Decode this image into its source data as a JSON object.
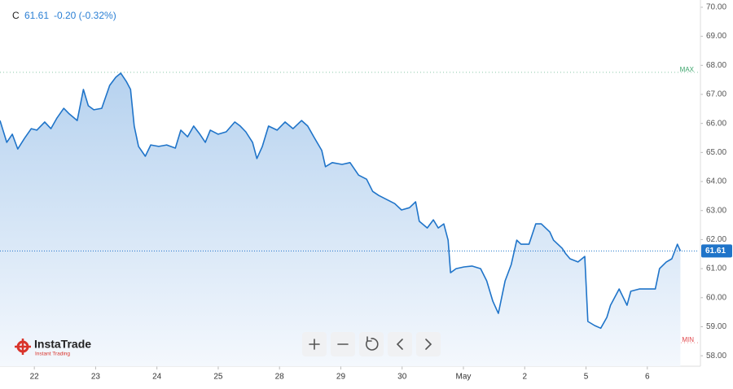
{
  "header": {
    "ticker": "C",
    "price": "61.61",
    "change": "-0.20 (-0.32%)"
  },
  "logo": {
    "name": "InstaTrade",
    "tagline": "Instant Trading"
  },
  "chart_data": {
    "type": "area",
    "color": "#1f74c9",
    "grid": false,
    "x": [
      -0.56,
      -0.45,
      -0.36,
      -0.27,
      -0.16,
      -0.05,
      0.04,
      0.17,
      0.27,
      0.37,
      0.48,
      0.57,
      0.7,
      0.8,
      0.88,
      0.97,
      1.1,
      1.23,
      1.33,
      1.41,
      1.5,
      1.57,
      1.63,
      1.7,
      1.81,
      1.9,
      2.03,
      2.16,
      2.3,
      2.39,
      2.5,
      2.6,
      2.7,
      2.79,
      2.87,
      3.0,
      3.13,
      3.27,
      3.36,
      3.45,
      3.56,
      3.63,
      3.72,
      3.82,
      3.96,
      4.09,
      4.22,
      4.36,
      4.46,
      4.56,
      4.69,
      4.75,
      4.86,
      5.02,
      5.15,
      5.29,
      5.42,
      5.52,
      5.62,
      5.75,
      5.88,
      5.99,
      6.12,
      6.22,
      6.28,
      6.41,
      6.51,
      6.59,
      6.68,
      6.75,
      6.79,
      6.88,
      7.01,
      7.14,
      7.28,
      7.38,
      7.48,
      7.57,
      7.68,
      7.78,
      7.87,
      7.94,
      8.07,
      8.18,
      8.27,
      8.41,
      8.47,
      8.61,
      8.67,
      8.74,
      8.87,
      8.98,
      9.03,
      9.14,
      9.24,
      9.34,
      9.4,
      9.54,
      9.67,
      9.73,
      9.87,
      10.0,
      10.13,
      10.2,
      10.31,
      10.4,
      10.49,
      10.54
    ],
    "values": [
      66.1,
      65.35,
      65.63,
      65.12,
      65.49,
      65.82,
      65.77,
      66.05,
      65.82,
      66.19,
      66.52,
      66.33,
      66.1,
      67.17,
      66.61,
      66.47,
      66.52,
      67.31,
      67.59,
      67.73,
      67.45,
      67.17,
      65.91,
      65.21,
      64.87,
      65.26,
      65.21,
      65.26,
      65.15,
      65.77,
      65.54,
      65.91,
      65.63,
      65.35,
      65.77,
      65.63,
      65.71,
      66.05,
      65.91,
      65.71,
      65.35,
      64.79,
      65.21,
      65.91,
      65.77,
      66.05,
      65.82,
      66.1,
      65.91,
      65.54,
      65.07,
      64.51,
      64.65,
      64.59,
      64.65,
      64.22,
      64.08,
      63.66,
      63.52,
      63.38,
      63.24,
      63.02,
      63.1,
      63.3,
      62.63,
      62.4,
      62.68,
      62.4,
      62.54,
      61.98,
      60.86,
      61.0,
      61.06,
      61.09,
      61.0,
      60.58,
      59.88,
      59.46,
      60.58,
      61.14,
      61.98,
      61.84,
      61.84,
      62.54,
      62.54,
      62.26,
      61.98,
      61.7,
      61.51,
      61.34,
      61.23,
      61.42,
      59.18,
      59.04,
      58.95,
      59.32,
      59.74,
      60.3,
      59.74,
      60.22,
      60.3,
      60.3,
      60.3,
      61.0,
      61.23,
      61.34,
      61.84,
      61.61
    ],
    "xlim": [
      -0.56,
      10.84
    ],
    "xticks": [
      {
        "value": 0,
        "label": "22"
      },
      {
        "value": 1,
        "label": "23"
      },
      {
        "value": 2,
        "label": "24"
      },
      {
        "value": 3,
        "label": "25"
      },
      {
        "value": 4,
        "label": "28"
      },
      {
        "value": 5,
        "label": "29"
      },
      {
        "value": 6,
        "label": "30"
      },
      {
        "value": 7,
        "label": "May"
      },
      {
        "value": 8,
        "label": "2"
      },
      {
        "value": 9,
        "label": "5"
      },
      {
        "value": 10,
        "label": "6"
      }
    ],
    "ylim": [
      57.64,
      70.25
    ],
    "yticks": [
      {
        "value": 58,
        "label": "58.00"
      },
      {
        "value": 59,
        "label": "59.00"
      },
      {
        "value": 60,
        "label": "60.00"
      },
      {
        "value": 61,
        "label": "61.00"
      },
      {
        "value": 62,
        "label": "62.00"
      },
      {
        "value": 63,
        "label": "63.00"
      },
      {
        "value": 64,
        "label": "64.00"
      },
      {
        "value": 65,
        "label": "65.00"
      },
      {
        "value": 66,
        "label": "66.00"
      },
      {
        "value": 67,
        "label": "67.00"
      },
      {
        "value": 68,
        "label": "68.00"
      },
      {
        "value": 69,
        "label": "69.00"
      },
      {
        "value": 70,
        "label": "70.00"
      }
    ],
    "last": 61.61,
    "max": {
      "value": 67.76,
      "label": "MAX",
      "color": "#3aa46a"
    },
    "min": {
      "value": 58.45,
      "label": "MIN",
      "color": "#e0474c"
    }
  }
}
